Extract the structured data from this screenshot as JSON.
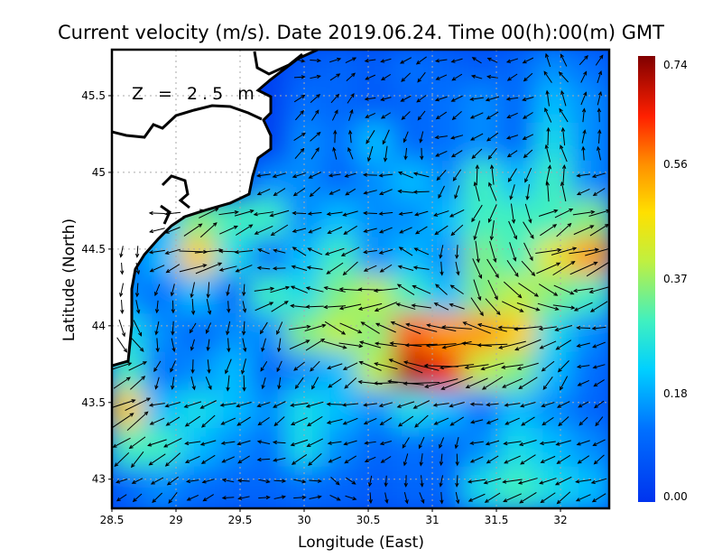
{
  "chart_data": {
    "type": "heatmap",
    "title": "Current velocity (m/s). Date 2019.06.24. Time 00(h):00(m) GMT",
    "annotation": "Z = 2.5 m",
    "xlabel": "Longitude (East)",
    "ylabel": "Latitude (North)",
    "xlim": [
      28.5,
      32.38
    ],
    "ylim": [
      42.81,
      45.8
    ],
    "xticks": [
      "28.5",
      "29",
      "29.5",
      "30",
      "30.5",
      "31",
      "31.5",
      "32"
    ],
    "xtick_values": [
      28.5,
      29,
      29.5,
      30,
      30.5,
      31,
      31.5,
      32
    ],
    "yticks": [
      "45.5",
      "45",
      "44.5",
      "44",
      "43.5",
      "43"
    ],
    "ytick_values": [
      45.5,
      45,
      44.5,
      44,
      43.5,
      43
    ],
    "grid": true,
    "colorbar": {
      "range": [
        0,
        0.74
      ],
      "labels": [
        "0.74",
        "0.56",
        "0.37",
        "0.18",
        "0.00"
      ],
      "label_values": [
        0.74,
        0.56,
        0.37,
        0.18,
        0.0
      ],
      "stops": [
        [
          0,
          "#0033ee"
        ],
        [
          0.12,
          "#0070ff"
        ],
        [
          0.22,
          "#00d0ff"
        ],
        [
          0.3,
          "#40f0c0"
        ],
        [
          0.4,
          "#c0f040"
        ],
        [
          0.48,
          "#ffe000"
        ],
        [
          0.56,
          "#ff9000"
        ],
        [
          0.64,
          "#ff2000"
        ],
        [
          0.74,
          "#800000"
        ]
      ]
    },
    "grid_note_rows_from_north": true,
    "speed": [
      [
        null,
        null,
        null,
        null,
        null,
        0.08,
        0.1,
        0.08,
        0.12,
        0.1,
        0.08,
        0.1,
        0.15,
        0.12
      ],
      [
        null,
        null,
        null,
        null,
        null,
        0.12,
        0.1,
        0.08,
        0.1,
        0.12,
        0.15,
        0.1,
        0.2,
        0.15
      ],
      [
        null,
        null,
        null,
        null,
        null,
        0.15,
        0.12,
        0.2,
        0.1,
        0.12,
        0.15,
        0.1,
        0.25,
        0.15
      ],
      [
        null,
        null,
        null,
        null,
        0.15,
        0.15,
        0.1,
        0.15,
        0.2,
        0.15,
        0.3,
        0.2,
        0.3,
        0.15
      ],
      [
        null,
        0.2,
        0.35,
        0.3,
        0.3,
        0.15,
        0.2,
        0.15,
        0.15,
        0.2,
        0.3,
        0.3,
        0.3,
        0.35
      ],
      [
        0.1,
        0.2,
        0.5,
        0.25,
        0.12,
        0.2,
        0.3,
        0.15,
        0.2,
        0.15,
        0.35,
        0.3,
        0.45,
        0.55
      ],
      [
        0.15,
        0.12,
        0.2,
        0.1,
        0.3,
        0.25,
        0.35,
        0.4,
        0.3,
        0.2,
        0.35,
        0.4,
        0.35,
        0.3
      ],
      [
        0.25,
        0.15,
        0.1,
        0.15,
        0.15,
        0.35,
        0.4,
        0.35,
        0.6,
        0.55,
        0.55,
        0.5,
        0.25,
        0.15
      ],
      [
        0.3,
        0.12,
        0.15,
        0.2,
        0.1,
        0.15,
        0.2,
        0.4,
        0.7,
        0.65,
        0.4,
        0.35,
        0.2,
        0.12
      ],
      [
        0.5,
        0.2,
        0.25,
        0.2,
        0.15,
        0.25,
        0.2,
        0.15,
        0.25,
        0.2,
        0.12,
        0.2,
        0.15,
        0.1
      ],
      [
        0.3,
        0.3,
        0.2,
        0.15,
        0.12,
        0.25,
        0.15,
        0.1,
        0.12,
        0.1,
        0.15,
        0.25,
        0.2,
        0.15
      ],
      [
        0.1,
        0.15,
        0.12,
        0.1,
        0.1,
        0.12,
        0.1,
        0.08,
        0.1,
        0.1,
        0.25,
        0.3,
        0.25,
        0.2
      ]
    ],
    "direction_deg": [
      [
        null,
        null,
        null,
        null,
        null,
        0,
        30,
        200,
        220,
        200,
        160,
        210,
        120,
        60
      ],
      [
        null,
        null,
        null,
        null,
        null,
        45,
        60,
        200,
        220,
        210,
        200,
        200,
        110,
        80
      ],
      [
        null,
        null,
        null,
        null,
        null,
        45,
        100,
        250,
        260,
        200,
        220,
        210,
        100,
        90
      ],
      [
        null,
        null,
        null,
        null,
        200,
        210,
        200,
        190,
        170,
        240,
        100,
        250,
        90,
        200
      ],
      [
        null,
        190,
        30,
        20,
        200,
        190,
        200,
        190,
        200,
        210,
        250,
        290,
        30,
        20
      ],
      [
        270,
        200,
        10,
        190,
        170,
        160,
        210,
        200,
        160,
        270,
        290,
        300,
        20,
        20
      ],
      [
        270,
        260,
        270,
        270,
        20,
        170,
        180,
        190,
        160,
        150,
        300,
        330,
        340,
        200
      ],
      [
        300,
        270,
        250,
        270,
        250,
        20,
        340,
        160,
        170,
        180,
        170,
        190,
        200,
        190
      ],
      [
        30,
        250,
        280,
        260,
        250,
        230,
        210,
        170,
        170,
        190,
        200,
        200,
        230,
        200
      ],
      [
        30,
        200,
        210,
        200,
        210,
        200,
        190,
        200,
        210,
        200,
        190,
        200,
        210,
        220
      ],
      [
        220,
        210,
        200,
        200,
        180,
        210,
        200,
        200,
        250,
        260,
        200,
        200,
        200,
        210
      ],
      [
        210,
        220,
        200,
        180,
        0,
        0,
        330,
        270,
        280,
        270,
        200,
        200,
        210,
        200
      ]
    ]
  }
}
